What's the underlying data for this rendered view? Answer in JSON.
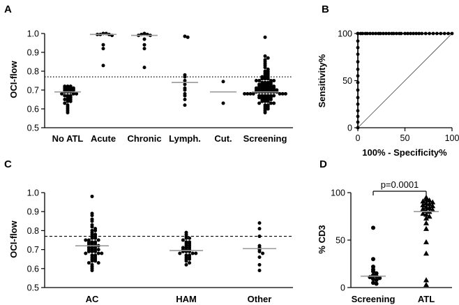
{
  "chart_data": [
    {
      "panel": "A",
      "type": "scatter",
      "ylabel": "OCI-flow",
      "ylim": [
        0.5,
        1.0
      ],
      "yticks": [
        "0.5",
        "0.6",
        "0.7",
        "0.8",
        "0.9",
        "1.0"
      ],
      "threshold": 0.77,
      "threshold_style": "dotted",
      "categories": [
        "No ATL",
        "Acute",
        "Chronic",
        "Lymph.",
        "Cut.",
        "Screening"
      ],
      "median": [
        0.69,
        0.995,
        0.99,
        0.74,
        0.69,
        0.69
      ],
      "groups": [
        [
          0.72,
          0.72,
          0.72,
          0.71,
          0.71,
          0.71,
          0.71,
          0.7,
          0.7,
          0.7,
          0.7,
          0.69,
          0.69,
          0.69,
          0.68,
          0.68,
          0.68,
          0.67,
          0.67,
          0.67,
          0.66,
          0.66,
          0.65,
          0.65,
          0.65,
          0.64,
          0.64,
          0.63,
          0.62,
          0.61,
          0.6,
          0.59,
          0.58
        ],
        [
          1.0,
          1.0,
          0.995,
          0.995,
          0.995,
          0.99,
          0.94,
          0.92,
          0.83
        ],
        [
          1.0,
          0.995,
          0.995,
          0.99,
          0.99,
          0.97,
          0.94,
          0.92,
          0.82
        ],
        [
          0.985,
          0.98,
          0.78,
          0.77,
          0.75,
          0.73,
          0.71,
          0.7,
          0.68,
          0.67,
          0.65,
          0.62
        ],
        [
          0.745,
          0.63
        ],
        [
          0.98,
          0.88,
          0.87,
          0.86,
          0.85,
          0.84,
          0.83,
          0.82,
          0.81,
          0.8,
          0.8,
          0.79,
          0.79,
          0.78,
          0.78,
          0.77,
          0.77,
          0.77,
          0.76,
          0.76,
          0.76,
          0.75,
          0.75,
          0.75,
          0.75,
          0.74,
          0.74,
          0.74,
          0.74,
          0.73,
          0.73,
          0.73,
          0.73,
          0.73,
          0.72,
          0.72,
          0.72,
          0.72,
          0.72,
          0.72,
          0.71,
          0.71,
          0.71,
          0.71,
          0.71,
          0.71,
          0.71,
          0.7,
          0.7,
          0.7,
          0.7,
          0.7,
          0.7,
          0.7,
          0.7,
          0.69,
          0.69,
          0.69,
          0.69,
          0.69,
          0.69,
          0.69,
          0.69,
          0.68,
          0.68,
          0.68,
          0.68,
          0.68,
          0.68,
          0.68,
          0.67,
          0.67,
          0.67,
          0.67,
          0.67,
          0.67,
          0.66,
          0.66,
          0.66,
          0.66,
          0.66,
          0.65,
          0.65,
          0.65,
          0.65,
          0.64,
          0.64,
          0.64,
          0.63,
          0.63,
          0.63,
          0.62,
          0.62,
          0.61,
          0.61,
          0.6,
          0.6,
          0.59,
          0.58
        ]
      ]
    },
    {
      "panel": "B",
      "type": "line",
      "xlabel": "100% - Specificity%",
      "ylabel": "Sensitivity%",
      "xlim": [
        0,
        100
      ],
      "ylim": [
        0,
        100
      ],
      "xticks": [
        "0",
        "50",
        "100"
      ],
      "yticks": [
        "0",
        "50",
        "100"
      ],
      "roc_vertical_y": [
        0,
        6,
        12,
        18,
        25,
        32,
        40,
        48,
        55,
        62,
        70,
        78,
        85,
        92,
        100
      ],
      "roc_horizontal_x": [
        0,
        3,
        5,
        8,
        10,
        13,
        16,
        19,
        22,
        24,
        27,
        30,
        33,
        36,
        38,
        41,
        44,
        46,
        50,
        53,
        56,
        59,
        62,
        65,
        68,
        72,
        76,
        80,
        84,
        88,
        92,
        96,
        100
      ],
      "reference_line": [
        [
          0,
          0
        ],
        [
          100,
          100
        ]
      ]
    },
    {
      "panel": "C",
      "type": "scatter",
      "ylabel": "OCI-flow",
      "ylim": [
        0.5,
        1.0
      ],
      "yticks": [
        "0.5",
        "0.6",
        "0.7",
        "0.8",
        "0.9",
        "1.0"
      ],
      "threshold": 0.77,
      "threshold_style": "dashed",
      "categories": [
        "AC",
        "HAM",
        "Other"
      ],
      "median": [
        0.72,
        0.695,
        0.705
      ],
      "groups": [
        [
          0.98,
          0.89,
          0.88,
          0.86,
          0.85,
          0.83,
          0.82,
          0.81,
          0.8,
          0.8,
          0.79,
          0.78,
          0.78,
          0.77,
          0.77,
          0.76,
          0.76,
          0.75,
          0.75,
          0.75,
          0.74,
          0.74,
          0.74,
          0.73,
          0.73,
          0.73,
          0.72,
          0.72,
          0.72,
          0.72,
          0.71,
          0.71,
          0.71,
          0.7,
          0.7,
          0.7,
          0.7,
          0.69,
          0.69,
          0.69,
          0.68,
          0.68,
          0.68,
          0.67,
          0.67,
          0.66,
          0.66,
          0.65,
          0.65,
          0.64,
          0.64,
          0.63,
          0.63,
          0.62,
          0.61,
          0.6,
          0.59
        ],
        [
          0.79,
          0.78,
          0.77,
          0.76,
          0.76,
          0.75,
          0.74,
          0.74,
          0.73,
          0.73,
          0.72,
          0.72,
          0.71,
          0.71,
          0.71,
          0.7,
          0.7,
          0.7,
          0.69,
          0.69,
          0.69,
          0.68,
          0.68,
          0.68,
          0.67,
          0.67,
          0.66,
          0.66,
          0.65,
          0.65,
          0.64,
          0.63,
          0.62
        ],
        [
          0.84,
          0.81,
          0.77,
          0.72,
          0.71,
          0.7,
          0.69,
          0.68,
          0.66,
          0.62,
          0.59
        ]
      ]
    },
    {
      "panel": "D",
      "type": "scatter",
      "ylabel": "% CD3",
      "ylim": [
        0,
        100
      ],
      "yticks": [
        "0",
        "50",
        "100"
      ],
      "categories": [
        "Screening",
        "ATL"
      ],
      "median": [
        12,
        80
      ],
      "annotation": "p=0.0001",
      "groups": [
        [
          63,
          30,
          22,
          19,
          17,
          15,
          13,
          12,
          11,
          10,
          9,
          8,
          5,
          4
        ],
        [
          95,
          93,
          92,
          91,
          90,
          89,
          88,
          87,
          86,
          85,
          84,
          83,
          82,
          81,
          80,
          78,
          77,
          75,
          73,
          68,
          62,
          48,
          36,
          8,
          3
        ]
      ],
      "markers": [
        "circle",
        "triangle"
      ]
    }
  ]
}
